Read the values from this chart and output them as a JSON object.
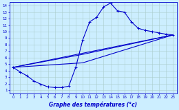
{
  "title": "Graphe des températures (°c)",
  "bg_color": "#cceeff",
  "grid_color": "#aacccc",
  "line_color": "#0000cc",
  "xlim": [
    -0.5,
    23.5
  ],
  "ylim": [
    0.5,
    14.5
  ],
  "xticks": [
    0,
    1,
    2,
    3,
    4,
    5,
    6,
    7,
    8,
    9,
    10,
    11,
    12,
    13,
    14,
    15,
    16,
    17,
    18,
    19,
    20,
    21,
    22,
    23
  ],
  "yticks": [
    1,
    2,
    3,
    4,
    5,
    6,
    7,
    8,
    9,
    10,
    11,
    12,
    13,
    14
  ],
  "line1_x": [
    0,
    1,
    2,
    3,
    4,
    5,
    6,
    7,
    8,
    9,
    10,
    11,
    12,
    13,
    14,
    15,
    16,
    17,
    18,
    19,
    20,
    21,
    22,
    23
  ],
  "line1_y": [
    4.5,
    3.8,
    3.2,
    2.4,
    1.9,
    1.5,
    1.4,
    1.4,
    1.6,
    4.5,
    8.7,
    11.5,
    12.2,
    13.8,
    14.4,
    13.2,
    13.0,
    11.5,
    10.5,
    10.2,
    10.0,
    9.8,
    9.6,
    9.5
  ],
  "line2_x": [
    0,
    23
  ],
  "line2_y": [
    4.5,
    9.5
  ],
  "line3_x": [
    0,
    10,
    23
  ],
  "line3_y": [
    4.5,
    6.5,
    9.5
  ],
  "line4_x": [
    0,
    10,
    23
  ],
  "line4_y": [
    4.5,
    5.2,
    9.5
  ]
}
